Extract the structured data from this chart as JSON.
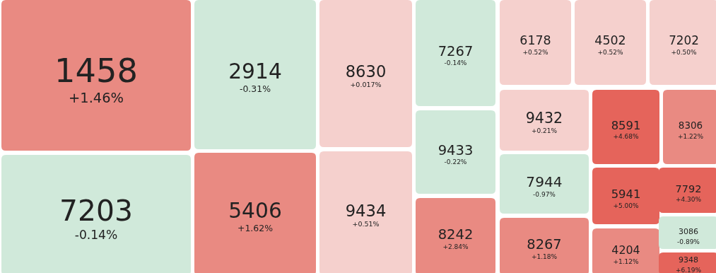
{
  "chart_data": {
    "type": "other",
    "categories": [
      "1458",
      "7203",
      "2914",
      "5406",
      "8630",
      "9434",
      "7267",
      "9433",
      "8242",
      "6178",
      "4502",
      "7202",
      "9432",
      "7944",
      "8267",
      "8591",
      "8306",
      "5941",
      "4204",
      "7792",
      "3086",
      "9348"
    ],
    "values": [
      1.46,
      -0.14,
      -0.31,
      1.62,
      0.017,
      0.51,
      -0.14,
      -0.22,
      2.84,
      0.52,
      0.52,
      0.5,
      0.21,
      -0.97,
      1.18,
      4.68,
      1.22,
      5.0,
      1.12,
      4.3,
      -0.89,
      6.19
    ],
    "value_labels": [
      "+1.46%",
      "-0.14%",
      "-0.31%",
      "+1.62%",
      "+0.017%",
      "+0.51%",
      "-0.14%",
      "-0.22%",
      "+2.84%",
      "+0.52%",
      "+0.52%",
      "+0.50%",
      "+0.21%",
      "-0.97%",
      "+1.18%",
      "+4.68%",
      "+1.22%",
      "+5.00%",
      "+1.12%",
      "+4.30%",
      "-0.89%",
      "+6.19%"
    ]
  }
}
